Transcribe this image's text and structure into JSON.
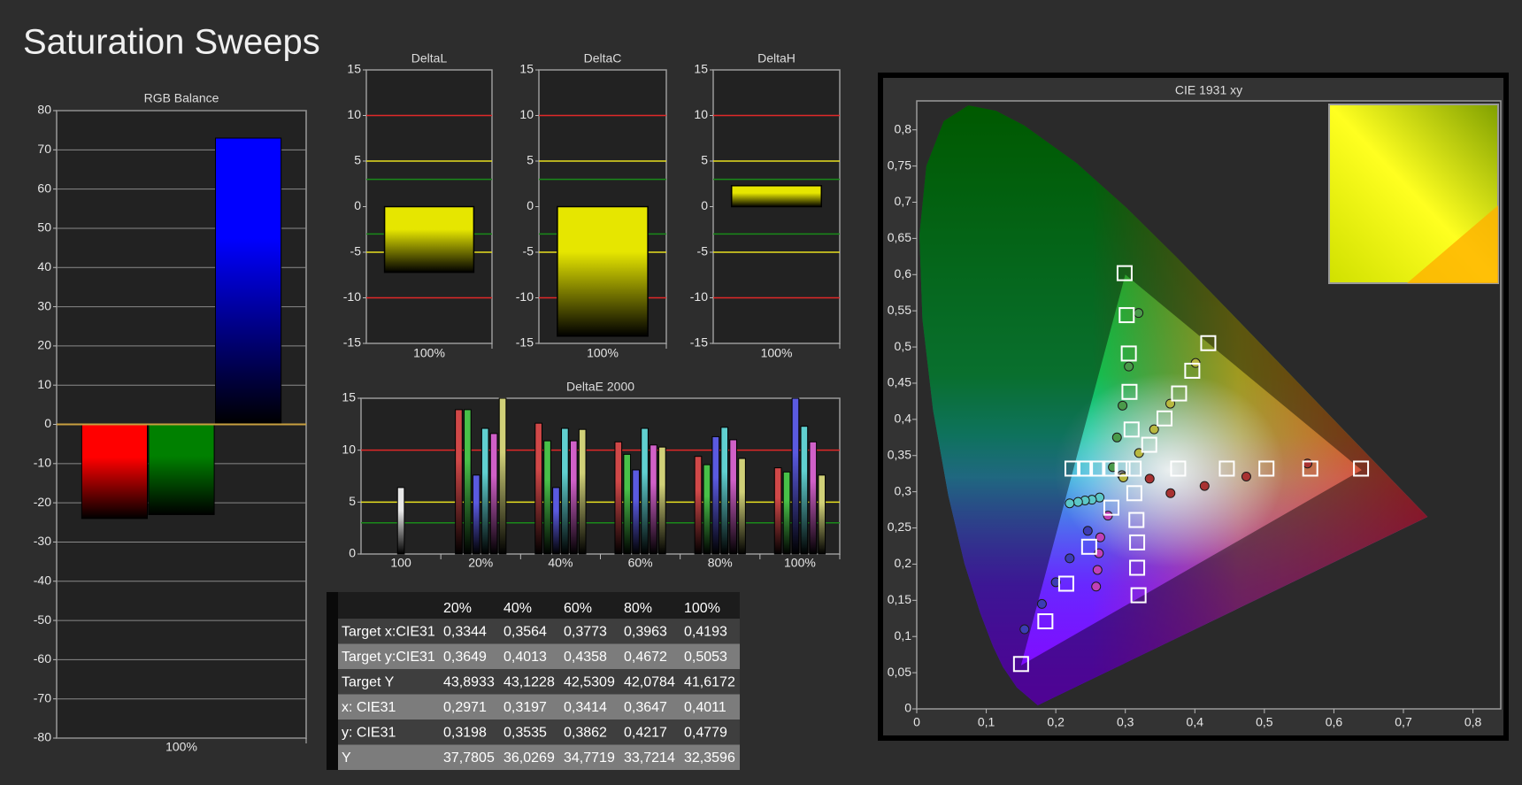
{
  "title": "Saturation Sweeps",
  "chart_data": [
    {
      "type": "bar",
      "title": "RGB Balance",
      "categories": [
        "100%"
      ],
      "series": [
        {
          "color": "#ff0000",
          "values": [
            -24
          ]
        },
        {
          "color": "#008000",
          "values": [
            -23
          ]
        },
        {
          "color": "#0000ff",
          "values": [
            73
          ]
        }
      ],
      "ylim": [
        -80,
        80
      ],
      "yticks": [
        -80,
        -70,
        -60,
        -50,
        -40,
        -30,
        -20,
        -10,
        0,
        10,
        20,
        30,
        40,
        50,
        60,
        70,
        80
      ],
      "grid": true
    },
    {
      "type": "bar",
      "title": "DeltaL",
      "categories": [
        "100%"
      ],
      "values": [
        -7.2
      ],
      "color": "#e6e600",
      "ylim": [
        -15,
        15
      ],
      "yticks": [
        -15,
        -10,
        -5,
        0,
        5,
        10,
        15
      ],
      "reference_lines": [
        {
          "value": 10,
          "color": "#e02828"
        },
        {
          "value": 5,
          "color": "#e8e020"
        },
        {
          "value": 3,
          "color": "#1a8a1a"
        },
        {
          "value": -3,
          "color": "#1a8a1a"
        },
        {
          "value": -5,
          "color": "#e8e020"
        },
        {
          "value": -10,
          "color": "#e02828"
        }
      ]
    },
    {
      "type": "bar",
      "title": "DeltaC",
      "categories": [
        "100%"
      ],
      "values": [
        -14.2
      ],
      "color": "#e6e600",
      "ylim": [
        -15,
        15
      ],
      "yticks": [
        -15,
        -10,
        -5,
        0,
        5,
        10,
        15
      ],
      "reference_lines": [
        {
          "value": 10,
          "color": "#e02828"
        },
        {
          "value": 5,
          "color": "#e8e020"
        },
        {
          "value": 3,
          "color": "#1a8a1a"
        },
        {
          "value": -3,
          "color": "#1a8a1a"
        },
        {
          "value": -5,
          "color": "#e8e020"
        },
        {
          "value": -10,
          "color": "#e02828"
        }
      ]
    },
    {
      "type": "bar",
      "title": "DeltaH",
      "categories": [
        "100%"
      ],
      "values": [
        2.3
      ],
      "color": "#e6e600",
      "ylim": [
        -15,
        15
      ],
      "yticks": [
        -15,
        -10,
        -5,
        0,
        5,
        10,
        15
      ],
      "reference_lines": [
        {
          "value": 10,
          "color": "#e02828"
        },
        {
          "value": 5,
          "color": "#e8e020"
        },
        {
          "value": 3,
          "color": "#1a8a1a"
        },
        {
          "value": -3,
          "color": "#1a8a1a"
        },
        {
          "value": -5,
          "color": "#e8e020"
        },
        {
          "value": -10,
          "color": "#e02828"
        }
      ]
    },
    {
      "type": "bar",
      "title": "DeltaE 2000",
      "categories": [
        "100",
        "20%",
        "40%",
        "60%",
        "80%",
        "100%"
      ],
      "series": [
        {
          "color": "#e8e8e8",
          "values": [
            6.4,
            null,
            null,
            null,
            null,
            null
          ]
        },
        {
          "color": "#d04848",
          "values": [
            null,
            13.9,
            12.6,
            10.8,
            9.4,
            8.3
          ]
        },
        {
          "color": "#48c048",
          "values": [
            null,
            13.9,
            10.9,
            9.6,
            8.6,
            7.9
          ]
        },
        {
          "color": "#5a5ae0",
          "values": [
            null,
            7.6,
            6.4,
            8.1,
            11.3,
            15
          ]
        },
        {
          "color": "#60d0d0",
          "values": [
            null,
            12.1,
            12.1,
            12.1,
            12.2,
            12.3
          ]
        },
        {
          "color": "#d060c8",
          "values": [
            null,
            11.6,
            10.9,
            10.5,
            11.0,
            10.8
          ]
        },
        {
          "color": "#d0d078",
          "values": [
            null,
            15,
            12.0,
            10.3,
            9.2,
            7.6
          ]
        }
      ],
      "ylim": [
        0,
        15
      ],
      "yticks": [
        0,
        5,
        10,
        15
      ],
      "reference_lines": [
        {
          "value": 10,
          "color": "#e02828"
        },
        {
          "value": 5,
          "color": "#e8e020"
        },
        {
          "value": 3,
          "color": "#1a8a1a"
        }
      ]
    },
    {
      "type": "scatter",
      "title": "CIE 1931 xy",
      "xlim": [
        0,
        0.84
      ],
      "ylim": [
        0,
        0.84
      ],
      "xticks": [
        0,
        {
          "value": 0.1,
          "label": "0,1"
        },
        {
          "value": 0.2,
          "label": "0,2"
        },
        {
          "value": 0.3,
          "label": "0,3"
        },
        {
          "value": 0.4,
          "label": "0,4"
        },
        {
          "value": 0.5,
          "label": "0,5"
        },
        {
          "value": 0.6,
          "label": "0,6"
        },
        {
          "value": 0.7,
          "label": "0,7"
        },
        {
          "value": 0.8,
          "label": "0,8"
        }
      ],
      "yticks": [
        0,
        {
          "value": 0.05,
          "label": "0,05"
        },
        {
          "value": 0.1,
          "label": "0,1"
        },
        {
          "value": 0.15,
          "label": "0,15"
        },
        {
          "value": 0.2,
          "label": "0,2"
        },
        {
          "value": 0.25,
          "label": "0,25"
        },
        {
          "value": 0.3,
          "label": "0,3"
        },
        {
          "value": 0.35,
          "label": "0,35"
        },
        {
          "value": 0.4,
          "label": "0,4"
        },
        {
          "value": 0.45,
          "label": "0,45"
        },
        {
          "value": 0.5,
          "label": "0,5"
        },
        {
          "value": 0.55,
          "label": "0,55"
        },
        {
          "value": 0.6,
          "label": "0,6"
        },
        {
          "value": 0.65,
          "label": "0,65"
        },
        {
          "value": 0.7,
          "label": "0,7"
        },
        {
          "value": 0.75,
          "label": "0,75"
        },
        {
          "value": 0.8,
          "label": "0,8"
        }
      ],
      "spectral_locus": {
        "x": [
          0.1741,
          0.144,
          0.1241,
          0.1096,
          0.0913,
          0.0687,
          0.0454,
          0.0235,
          0.0082,
          0.0039,
          0.0139,
          0.0389,
          0.0743,
          0.1142,
          0.1547,
          0.2296,
          0.3016,
          0.3731,
          0.4441,
          0.5125,
          0.5752,
          0.627,
          0.6915,
          0.719,
          0.7347
        ],
        "y": [
          0.005,
          0.0297,
          0.0578,
          0.0868,
          0.1327,
          0.2007,
          0.295,
          0.4127,
          0.5384,
          0.6548,
          0.7502,
          0.812,
          0.8338,
          0.8262,
          0.8059,
          0.7543,
          0.6923,
          0.6245,
          0.5547,
          0.4866,
          0.4242,
          0.3725,
          0.3083,
          0.2809,
          0.2653
        ]
      },
      "gamut": {
        "x": [
          0.64,
          0.3,
          0.15
        ],
        "y": [
          0.33,
          0.6,
          0.06
        ]
      },
      "series": [
        {
          "marker": "circle",
          "color": "#8a8a8a",
          "x": [
            0.295
          ],
          "y": [
            0.323
          ]
        },
        {
          "marker": "circle",
          "color": "#a83232",
          "x": [
            0.335,
            0.365,
            0.414,
            0.474,
            0.562
          ],
          "y": [
            0.318,
            0.298,
            0.308,
            0.321,
            0.339
          ]
        },
        {
          "marker": "circle",
          "color": "#4a9a4a",
          "x": [
            0.282,
            0.288,
            0.296,
            0.305,
            0.319
          ],
          "y": [
            0.334,
            0.375,
            0.419,
            0.473,
            0.547
          ]
        },
        {
          "marker": "circle",
          "color": "#3c3cb4",
          "x": [
            0.246,
            0.22,
            0.2,
            0.18,
            0.155
          ],
          "y": [
            0.246,
            0.208,
            0.175,
            0.145,
            0.11
          ]
        },
        {
          "marker": "circle",
          "color": "#5cc8c8",
          "x": [
            0.263,
            0.252,
            0.242,
            0.232,
            0.22
          ],
          "y": [
            0.292,
            0.289,
            0.288,
            0.286,
            0.284
          ]
        },
        {
          "marker": "circle",
          "color": "#c040b8",
          "x": [
            0.275,
            0.264,
            0.262,
            0.26,
            0.258
          ],
          "y": [
            0.267,
            0.237,
            0.215,
            0.192,
            0.169
          ]
        },
        {
          "marker": "circle",
          "color": "#b8b840",
          "x": [
            0.2971,
            0.3197,
            0.3414,
            0.3647,
            0.4011
          ],
          "y": [
            0.3198,
            0.3535,
            0.3862,
            0.4217,
            0.4779
          ]
        },
        {
          "marker": "square",
          "color": "#ffffff",
          "x": [
            0.312,
            0.376,
            0.446,
            0.503,
            0.566,
            0.639,
            0.309,
            0.306,
            0.305,
            0.302,
            0.299,
            0.28,
            0.248,
            0.215,
            0.185,
            0.15,
            0.296,
            0.278,
            0.26,
            0.242,
            0.224,
            0.313,
            0.316,
            0.317,
            0.317,
            0.319,
            0.3344,
            0.3564,
            0.3773,
            0.3963,
            0.4193
          ],
          "y": [
            0.332,
            0.332,
            0.332,
            0.332,
            0.332,
            0.332,
            0.386,
            0.438,
            0.491,
            0.544,
            0.602,
            0.278,
            0.224,
            0.173,
            0.121,
            0.062,
            0.332,
            0.332,
            0.332,
            0.332,
            0.332,
            0.298,
            0.261,
            0.23,
            0.195,
            0.157,
            0.3649,
            0.4013,
            0.4358,
            0.4672,
            0.5053
          ]
        }
      ]
    }
  ],
  "table": {
    "header": [
      "20%",
      "40%",
      "60%",
      "80%",
      "100%"
    ],
    "rows": [
      {
        "label": "Target x:CIE31",
        "values": [
          "0,3344",
          "0,3564",
          "0,3773",
          "0,3963",
          "0,4193"
        ]
      },
      {
        "label": "Target y:CIE31",
        "values": [
          "0,3649",
          "0,4013",
          "0,4358",
          "0,4672",
          "0,5053"
        ]
      },
      {
        "label": "Target Y",
        "values": [
          "43,8933",
          "43,1228",
          "42,5309",
          "42,0784",
          "41,6172"
        ]
      },
      {
        "label": "x: CIE31",
        "values": [
          "0,2971",
          "0,3197",
          "0,3414",
          "0,3647",
          "0,4011"
        ]
      },
      {
        "label": "y: CIE31",
        "values": [
          "0,3198",
          "0,3535",
          "0,3862",
          "0,4217",
          "0,4779"
        ]
      },
      {
        "label": "Y",
        "values": [
          "37,7805",
          "36,0269",
          "34,7719",
          "33,7214",
          "32,3596"
        ]
      }
    ]
  }
}
